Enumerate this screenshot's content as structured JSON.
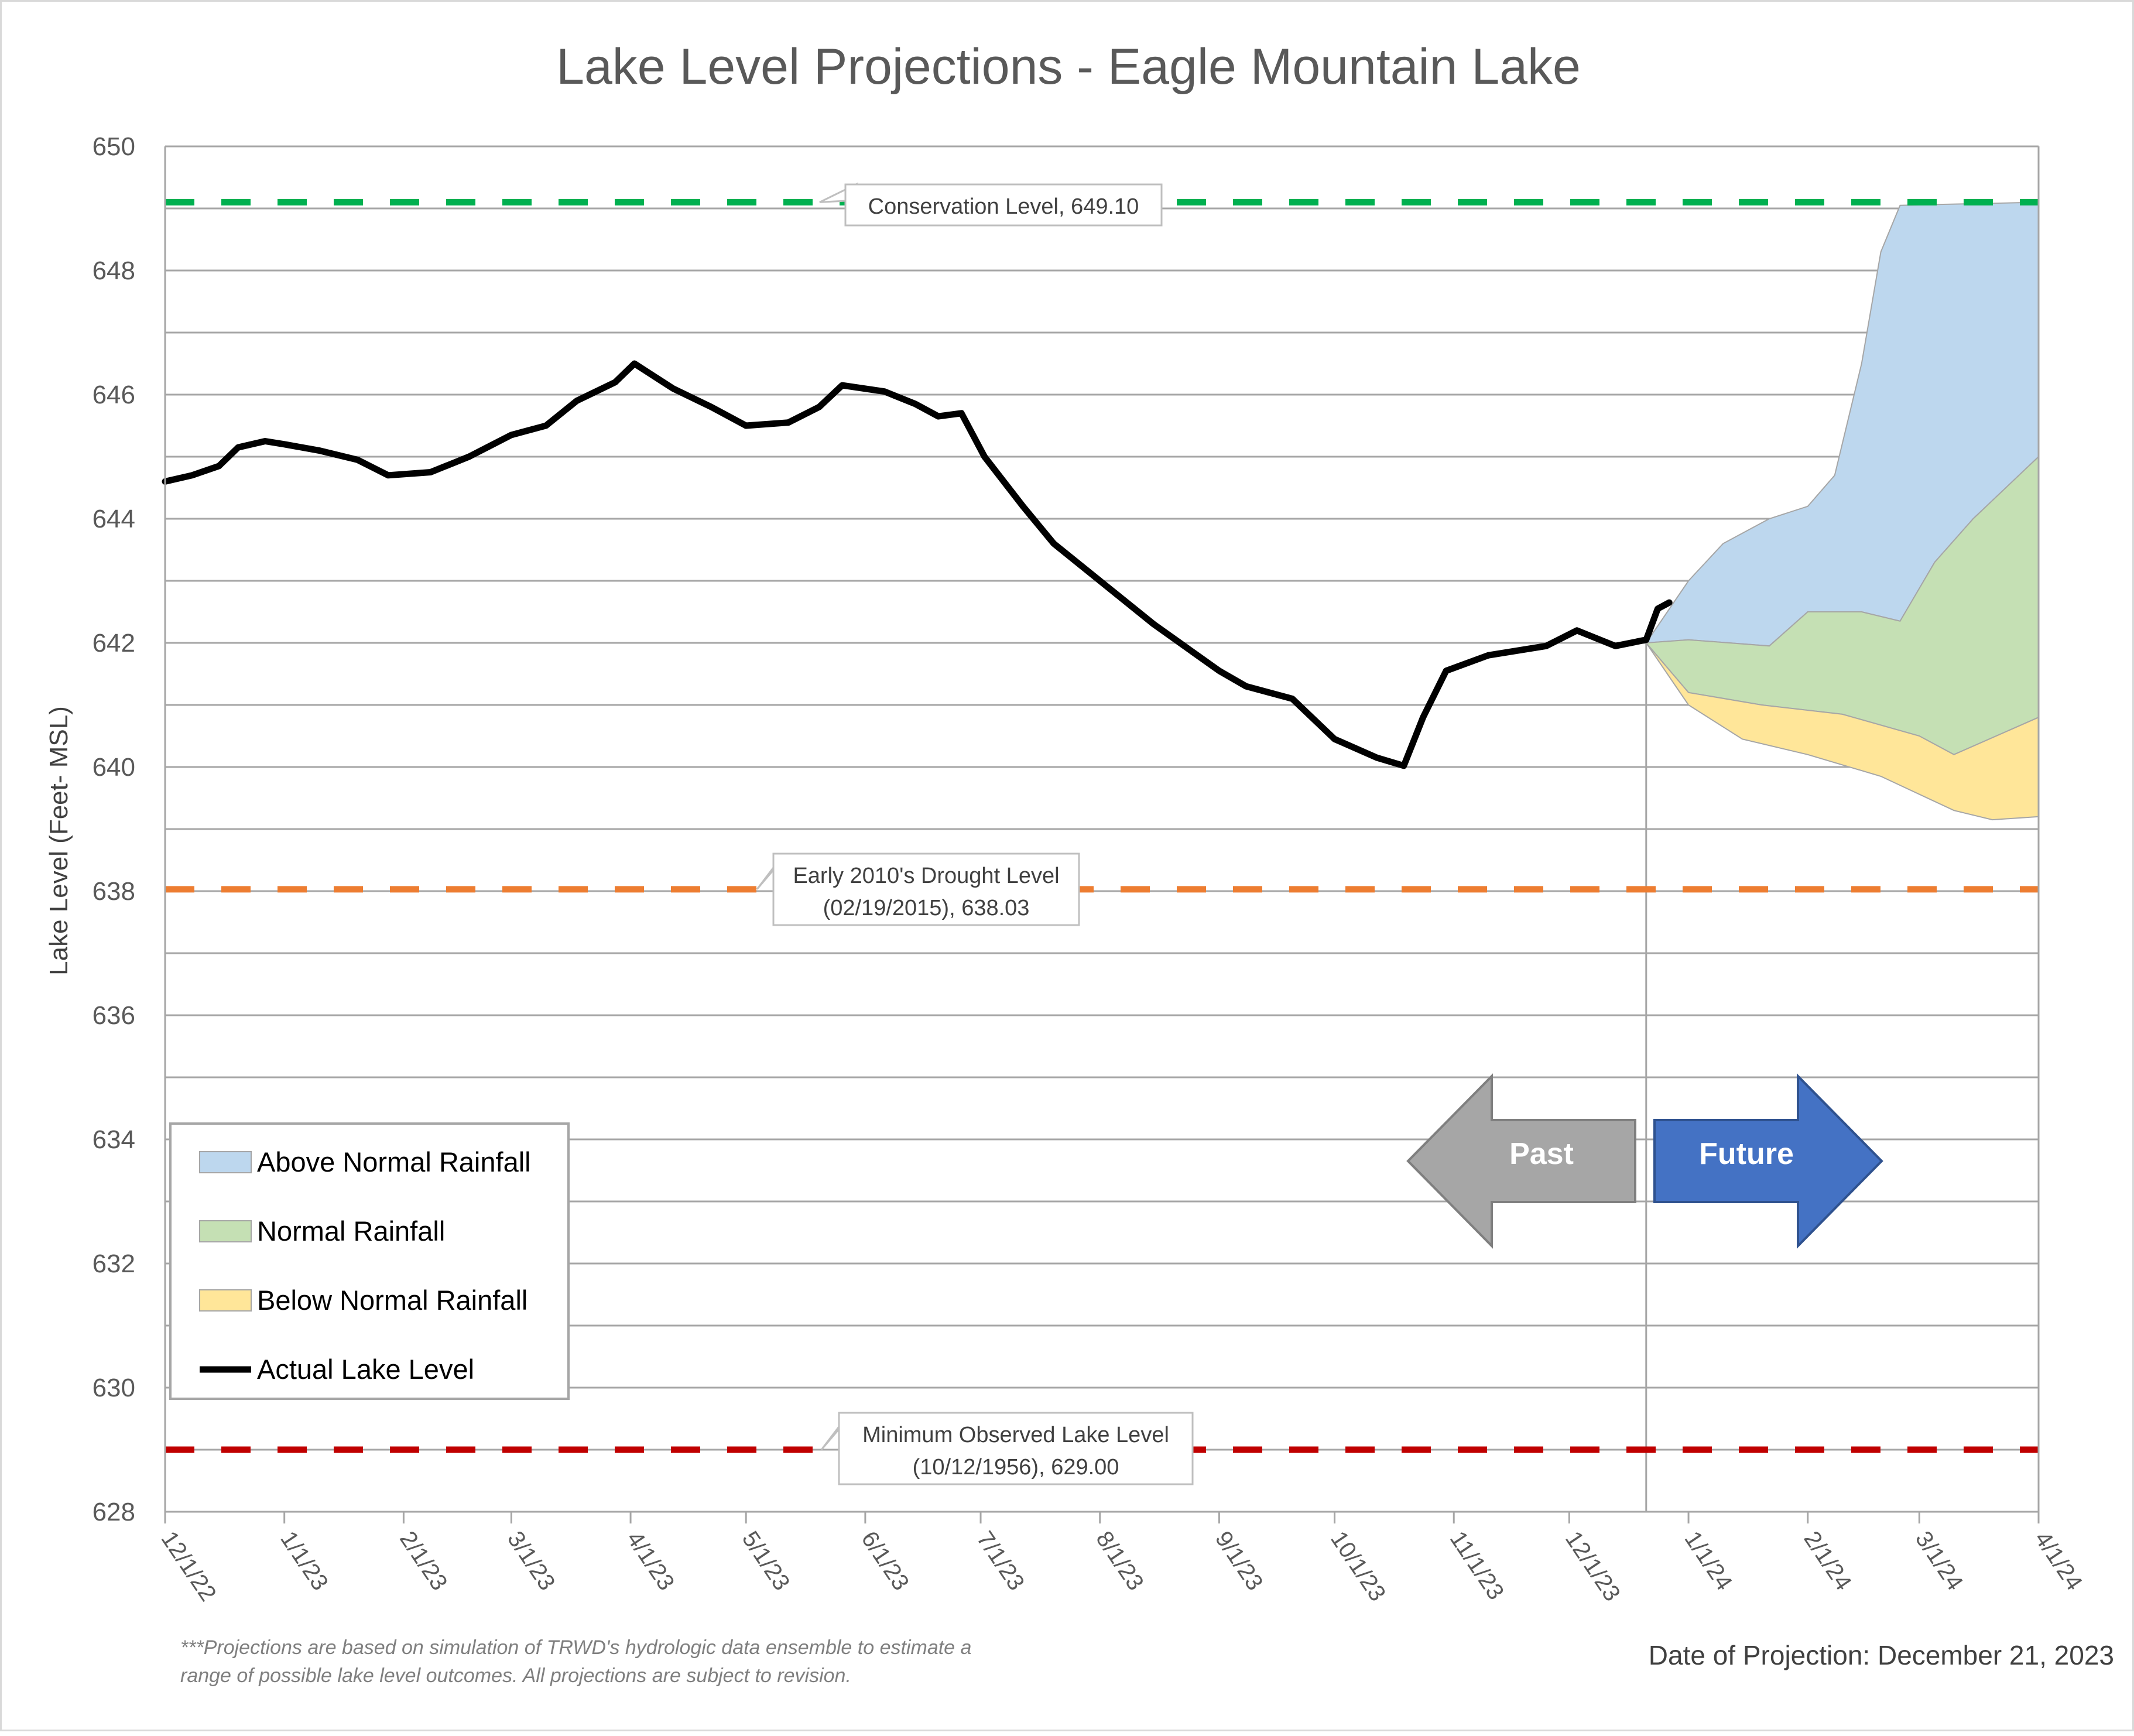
{
  "chart_data": {
    "type": "line",
    "title": "Lake Level Projections - Eagle Mountain Lake",
    "ylabel": "Lake Level (Feet- MSL)",
    "xlabel": "",
    "ylim": [
      628,
      650
    ],
    "y_ticks": [
      "628",
      "630",
      "632",
      "634",
      "636",
      "638",
      "640",
      "642",
      "644",
      "646",
      "648",
      "650"
    ],
    "x_ticks": [
      "12/1/22",
      "1/1/23",
      "2/1/23",
      "3/1/23",
      "4/1/23",
      "5/1/23",
      "6/1/23",
      "7/1/23",
      "8/1/23",
      "9/1/23",
      "10/1/23",
      "11/1/23",
      "12/1/23",
      "1/1/24",
      "2/1/24",
      "3/1/24",
      "4/1/24"
    ],
    "xlim": [
      "2022-12-01",
      "2024-04-01"
    ],
    "grid": true,
    "projection_date": "2023-12-21",
    "reference_lines": [
      {
        "name": "Conservation Level",
        "value": 649.1,
        "color": "#00b050",
        "label_lines": [
          "Conservation Level, 649.10"
        ]
      },
      {
        "name": "Early 2010's Drought Level",
        "value": 638.03,
        "color": "#ed7d31",
        "label_lines": [
          "Early 2010's Drought Level",
          "(02/19/2015), 638.03"
        ]
      },
      {
        "name": "Minimum Observed Lake Level",
        "value": 629.0,
        "color": "#c00000",
        "label_lines": [
          "Minimum Observed Lake Level",
          "(10/12/1956), 629.00"
        ]
      }
    ],
    "series": [
      {
        "name": "Actual Lake Level",
        "kind": "line",
        "color": "#000000",
        "points": [
          [
            "2022-12-01",
            644.6
          ],
          [
            "2022-12-08",
            644.7
          ],
          [
            "2022-12-15",
            644.85
          ],
          [
            "2022-12-20",
            645.15
          ],
          [
            "2022-12-27",
            645.25
          ],
          [
            "2023-01-01",
            645.2
          ],
          [
            "2023-01-10",
            645.1
          ],
          [
            "2023-01-20",
            644.95
          ],
          [
            "2023-01-28",
            644.7
          ],
          [
            "2023-02-08",
            644.75
          ],
          [
            "2023-02-18",
            645.0
          ],
          [
            "2023-03-01",
            645.35
          ],
          [
            "2023-03-10",
            645.5
          ],
          [
            "2023-03-18",
            645.9
          ],
          [
            "2023-03-28",
            646.2
          ],
          [
            "2023-04-02",
            646.5
          ],
          [
            "2023-04-12",
            646.1
          ],
          [
            "2023-04-22",
            645.8
          ],
          [
            "2023-05-01",
            645.5
          ],
          [
            "2023-05-12",
            645.55
          ],
          [
            "2023-05-20",
            645.8
          ],
          [
            "2023-05-26",
            646.15
          ],
          [
            "2023-06-06",
            646.05
          ],
          [
            "2023-06-14",
            645.85
          ],
          [
            "2023-06-20",
            645.65
          ],
          [
            "2023-06-26",
            645.7
          ],
          [
            "2023-07-02",
            645.0
          ],
          [
            "2023-07-12",
            644.2
          ],
          [
            "2023-07-20",
            643.6
          ],
          [
            "2023-08-01",
            643.0
          ],
          [
            "2023-08-15",
            642.3
          ],
          [
            "2023-09-01",
            641.55
          ],
          [
            "2023-09-08",
            641.3
          ],
          [
            "2023-09-20",
            641.1
          ],
          [
            "2023-10-01",
            640.45
          ],
          [
            "2023-10-12",
            640.15
          ],
          [
            "2023-10-19",
            640.02
          ],
          [
            "2023-10-24",
            640.8
          ],
          [
            "2023-10-30",
            641.55
          ],
          [
            "2023-11-10",
            641.8
          ],
          [
            "2023-11-25",
            641.95
          ],
          [
            "2023-12-03",
            642.2
          ],
          [
            "2023-12-13",
            641.95
          ],
          [
            "2023-12-21",
            642.05
          ],
          [
            "2023-12-24",
            642.55
          ],
          [
            "2023-12-27",
            642.65
          ]
        ]
      },
      {
        "name": "Above Normal Rainfall",
        "kind": "band",
        "color": "#bdd7ee",
        "upper": [
          [
            "2023-12-21",
            642.0
          ],
          [
            "2024-01-01",
            643.0
          ],
          [
            "2024-01-10",
            643.6
          ],
          [
            "2024-01-22",
            644.0
          ],
          [
            "2024-02-01",
            644.2
          ],
          [
            "2024-02-08",
            644.7
          ],
          [
            "2024-02-15",
            646.5
          ],
          [
            "2024-02-20",
            648.3
          ],
          [
            "2024-02-25",
            649.05
          ],
          [
            "2024-04-01",
            649.1
          ]
        ],
        "lower": [
          [
            "2023-12-21",
            642.0
          ],
          [
            "2024-01-01",
            642.05
          ],
          [
            "2024-01-22",
            641.95
          ],
          [
            "2024-02-01",
            642.5
          ],
          [
            "2024-02-15",
            642.5
          ],
          [
            "2024-02-25",
            642.35
          ],
          [
            "2024-03-05",
            643.3
          ],
          [
            "2024-03-15",
            644.0
          ],
          [
            "2024-04-01",
            645.0
          ]
        ]
      },
      {
        "name": "Normal Rainfall",
        "kind": "band",
        "color": "#c5e0b4",
        "upper": [
          [
            "2023-12-21",
            642.0
          ],
          [
            "2024-01-01",
            642.05
          ],
          [
            "2024-01-22",
            641.95
          ],
          [
            "2024-02-01",
            642.5
          ],
          [
            "2024-02-15",
            642.5
          ],
          [
            "2024-02-25",
            642.35
          ],
          [
            "2024-03-05",
            643.3
          ],
          [
            "2024-03-15",
            644.0
          ],
          [
            "2024-04-01",
            645.0
          ]
        ],
        "lower": [
          [
            "2023-12-21",
            642.0
          ],
          [
            "2024-01-01",
            641.2
          ],
          [
            "2024-01-20",
            641.0
          ],
          [
            "2024-02-10",
            640.85
          ],
          [
            "2024-03-01",
            640.5
          ],
          [
            "2024-03-10",
            640.2
          ],
          [
            "2024-04-01",
            640.8
          ]
        ]
      },
      {
        "name": "Below Normal Rainfall",
        "kind": "band",
        "color": "#ffe699",
        "upper": [
          [
            "2023-12-21",
            642.0
          ],
          [
            "2024-01-01",
            641.2
          ],
          [
            "2024-01-20",
            641.0
          ],
          [
            "2024-02-10",
            640.85
          ],
          [
            "2024-03-01",
            640.5
          ],
          [
            "2024-03-10",
            640.2
          ],
          [
            "2024-04-01",
            640.8
          ]
        ],
        "lower": [
          [
            "2023-12-21",
            642.0
          ],
          [
            "2024-01-01",
            641.0
          ],
          [
            "2024-01-15",
            640.45
          ],
          [
            "2024-02-01",
            640.2
          ],
          [
            "2024-02-20",
            639.85
          ],
          [
            "2024-03-10",
            639.3
          ],
          [
            "2024-03-20",
            639.15
          ],
          [
            "2024-04-01",
            639.2
          ]
        ]
      }
    ],
    "legend": {
      "placement": "bottom-left",
      "entries": [
        "Above Normal Rainfall",
        "Normal Rainfall",
        "Below Normal Rainfall",
        "Actual Lake Level"
      ]
    },
    "annotations": {
      "past_label": "Past",
      "future_label": "Future",
      "past_color": "#a6a6a6",
      "future_color": "#4472c4",
      "footnote_lines": [
        "***Projections are based on simulation of TRWD's hydrologic data ensemble to estimate a",
        "range of possible lake level outcomes.  All projections are subject to revision."
      ],
      "date_of_projection": "Date of Projection: December 21, 2023"
    }
  }
}
